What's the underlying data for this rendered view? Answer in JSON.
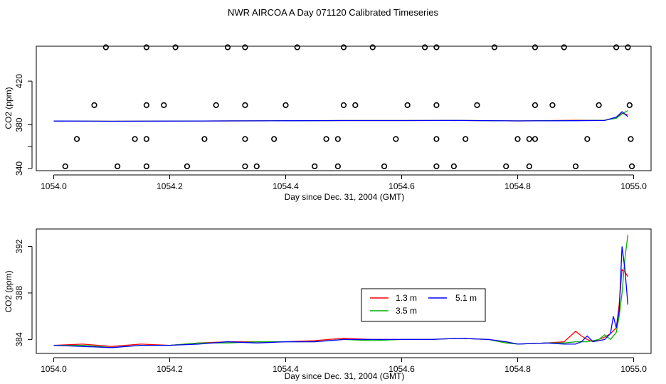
{
  "title": "NWR AIRCOA A  Day 071120  Calibrated Timeseries",
  "colors": {
    "h13": "#ff0000",
    "h35": "#00b000",
    "h51": "#0000ff",
    "axis": "#000000"
  },
  "chart_data": [
    {
      "type": "line",
      "xlabel": "Day since Dec. 31, 2004 (GMT)",
      "ylabel": "CO2 (ppm)",
      "xlim": [
        1053.97,
        1055.03
      ],
      "ylim": [
        338,
        452
      ],
      "xticks": [
        1054.0,
        1054.2,
        1054.4,
        1054.6,
        1054.8,
        1055.0
      ],
      "xtick_labels": [
        "1054.0",
        "1054.2",
        "1054.4",
        "1054.6",
        "1054.8",
        "1055.0"
      ],
      "yticks": [
        340,
        380,
        420
      ],
      "ytick_labels": [
        "340",
        "380",
        "420"
      ],
      "extra_ytick": 360,
      "calibration_points": {
        "levels": [
          342,
          367,
          398,
          451
        ],
        "x_342": [
          1054.02,
          1054.11,
          1054.16,
          1054.23,
          1054.33,
          1054.35,
          1054.45,
          1054.49,
          1054.57,
          1054.66,
          1054.69,
          1054.78,
          1054.82,
          1054.9,
          1054.997
        ],
        "x_367": [
          1054.04,
          1054.14,
          1054.16,
          1054.26,
          1054.33,
          1054.38,
          1054.47,
          1054.49,
          1054.59,
          1054.66,
          1054.71,
          1054.8,
          1054.82,
          1054.83,
          1054.92,
          1054.995
        ],
        "x_398": [
          1054.07,
          1054.16,
          1054.19,
          1054.28,
          1054.33,
          1054.4,
          1054.5,
          1054.52,
          1054.61,
          1054.66,
          1054.73,
          1054.83,
          1054.86,
          1054.94,
          1054.993
        ],
        "x_451": [
          1054.09,
          1054.16,
          1054.21,
          1054.3,
          1054.33,
          1054.42,
          1054.5,
          1054.55,
          1054.64,
          1054.66,
          1054.76,
          1054.83,
          1054.88,
          1054.97,
          1054.99
        ]
      },
      "series": [
        {
          "name": "1.3 m",
          "color": "#ff0000",
          "x": [
            1054.0,
            1054.1,
            1054.2,
            1054.3,
            1054.4,
            1054.5,
            1054.6,
            1054.7,
            1054.8,
            1054.9,
            1054.95,
            1054.97,
            1054.98,
            1054.99
          ],
          "values": [
            383.5,
            383.3,
            383.4,
            383.6,
            383.7,
            383.9,
            383.9,
            384.0,
            383.6,
            384.2,
            384.2,
            386.5,
            390.5,
            389.3
          ]
        },
        {
          "name": "3.5 m",
          "color": "#00b000",
          "x": [
            1054.0,
            1054.1,
            1054.2,
            1054.3,
            1054.4,
            1054.5,
            1054.6,
            1054.7,
            1054.8,
            1054.9,
            1054.95,
            1054.97,
            1054.98,
            1054.99
          ],
          "values": [
            383.5,
            383.3,
            383.4,
            383.6,
            383.7,
            383.9,
            383.9,
            384.0,
            383.6,
            383.9,
            384.2,
            386.0,
            390.0,
            393.0
          ]
        },
        {
          "name": "5.1 m",
          "color": "#0000ff",
          "x": [
            1054.0,
            1054.1,
            1054.2,
            1054.3,
            1054.4,
            1054.5,
            1054.6,
            1054.7,
            1054.8,
            1054.9,
            1054.95,
            1054.97,
            1054.98,
            1054.99
          ],
          "values": [
            383.5,
            383.3,
            383.4,
            383.6,
            383.7,
            383.9,
            383.9,
            384.0,
            383.6,
            383.8,
            384.0,
            387.0,
            392.0,
            387.5
          ]
        }
      ]
    },
    {
      "type": "line",
      "xlabel": "Day since Dec. 31, 2004 (GMT)",
      "ylabel": "CO2 (ppm)",
      "xlim": [
        1053.97,
        1055.03
      ],
      "ylim": [
        382.8,
        393.5
      ],
      "xticks": [
        1054.0,
        1054.2,
        1054.4,
        1054.6,
        1054.8,
        1055.0
      ],
      "xtick_labels": [
        "1054.0",
        "1054.2",
        "1054.4",
        "1054.6",
        "1054.8",
        "1055.0"
      ],
      "yticks": [
        384,
        388,
        392
      ],
      "ytick_labels": [
        "384",
        "388",
        "392"
      ],
      "legend": {
        "position": "center-right",
        "entries": [
          "1.3 m",
          "3.5 m",
          "5.1 m"
        ]
      },
      "series": [
        {
          "name": "1.3 m",
          "color": "#ff0000",
          "x": [
            1054.0,
            1054.05,
            1054.1,
            1054.15,
            1054.2,
            1054.25,
            1054.3,
            1054.35,
            1054.4,
            1054.45,
            1054.5,
            1054.55,
            1054.6,
            1054.65,
            1054.7,
            1054.75,
            1054.78,
            1054.8,
            1054.85,
            1054.88,
            1054.9,
            1054.91,
            1054.92,
            1054.93,
            1054.95,
            1054.96,
            1054.97,
            1054.975,
            1054.98,
            1054.985,
            1054.99
          ],
          "values": [
            383.5,
            383.6,
            383.4,
            383.6,
            383.5,
            383.7,
            383.8,
            383.8,
            383.8,
            383.9,
            384.1,
            384.0,
            384.0,
            384.0,
            384.1,
            384.0,
            383.8,
            383.6,
            383.7,
            383.8,
            384.7,
            384.3,
            384.0,
            383.8,
            384.2,
            384.5,
            385.0,
            387.0,
            390.0,
            389.8,
            389.4
          ]
        },
        {
          "name": "3.5 m",
          "color": "#00b000",
          "x": [
            1054.0,
            1054.05,
            1054.1,
            1054.15,
            1054.2,
            1054.25,
            1054.3,
            1054.35,
            1054.4,
            1054.45,
            1054.5,
            1054.55,
            1054.6,
            1054.65,
            1054.7,
            1054.75,
            1054.78,
            1054.8,
            1054.85,
            1054.88,
            1054.9,
            1054.92,
            1054.94,
            1054.95,
            1054.96,
            1054.97,
            1054.975,
            1054.98,
            1054.985,
            1054.99
          ],
          "values": [
            383.5,
            383.5,
            383.3,
            383.5,
            383.5,
            383.7,
            383.7,
            383.8,
            383.8,
            383.8,
            384.0,
            383.9,
            384.0,
            384.0,
            384.1,
            384.0,
            383.7,
            383.6,
            383.7,
            383.7,
            383.8,
            383.8,
            384.0,
            384.4,
            384.0,
            384.6,
            386.0,
            388.0,
            391.0,
            393.0
          ]
        },
        {
          "name": "5.1 m",
          "color": "#0000ff",
          "x": [
            1054.0,
            1054.05,
            1054.1,
            1054.15,
            1054.2,
            1054.25,
            1054.3,
            1054.35,
            1054.4,
            1054.45,
            1054.5,
            1054.55,
            1054.6,
            1054.65,
            1054.7,
            1054.75,
            1054.78,
            1054.8,
            1054.85,
            1054.88,
            1054.9,
            1054.91,
            1054.92,
            1054.93,
            1054.95,
            1054.96,
            1054.965,
            1054.97,
            1054.975,
            1054.98,
            1054.985,
            1054.99
          ],
          "values": [
            383.5,
            383.4,
            383.3,
            383.5,
            383.5,
            383.6,
            383.8,
            383.7,
            383.8,
            383.8,
            384.0,
            384.0,
            384.0,
            384.0,
            384.1,
            384.0,
            383.8,
            383.6,
            383.7,
            383.6,
            383.6,
            383.8,
            384.3,
            383.8,
            384.0,
            384.5,
            386.0,
            385.0,
            386.5,
            392.0,
            390.0,
            387.0
          ]
        }
      ]
    }
  ]
}
